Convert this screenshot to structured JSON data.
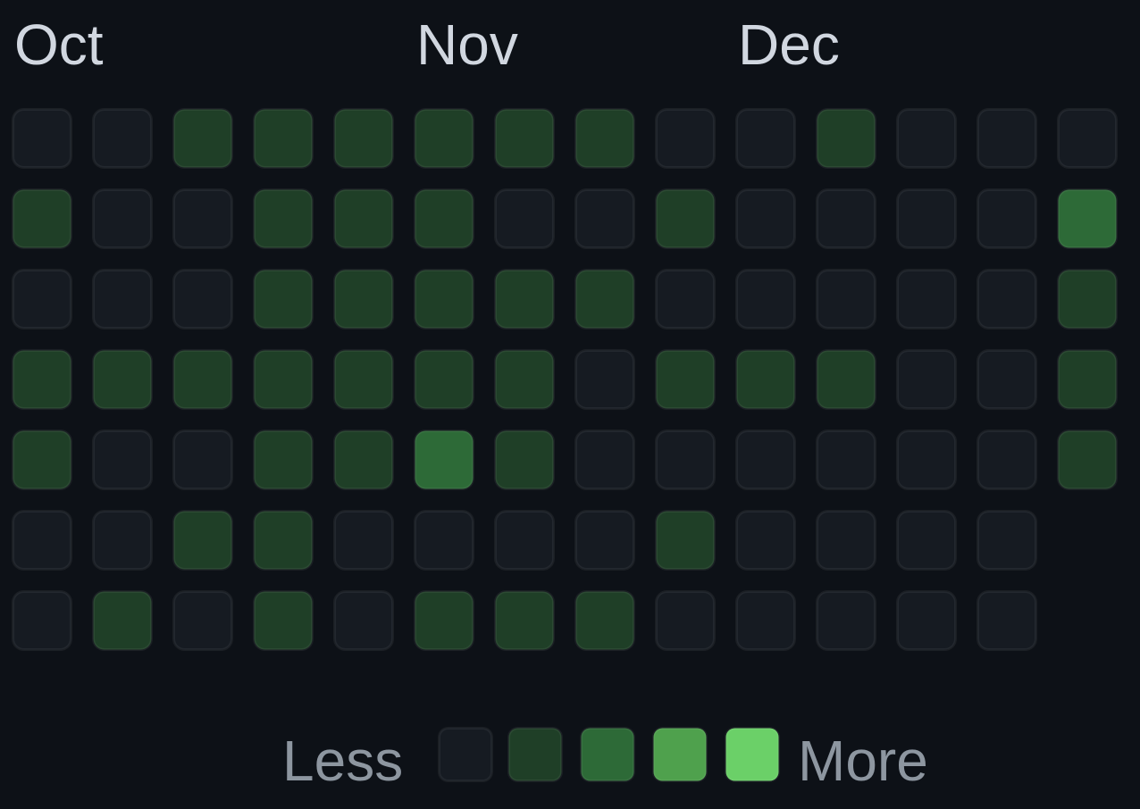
{
  "calendar": {
    "months": [
      "Oct",
      "Nov",
      "Dec"
    ],
    "weeks": [
      [
        0,
        1,
        0,
        1,
        1,
        0,
        0
      ],
      [
        0,
        0,
        0,
        1,
        0,
        0,
        1
      ],
      [
        1,
        0,
        0,
        1,
        0,
        1,
        0
      ],
      [
        1,
        1,
        1,
        1,
        1,
        1,
        1
      ],
      [
        1,
        1,
        1,
        1,
        1,
        0,
        0
      ],
      [
        1,
        1,
        1,
        1,
        2,
        0,
        1
      ],
      [
        1,
        0,
        1,
        1,
        1,
        0,
        1
      ],
      [
        1,
        0,
        1,
        0,
        0,
        0,
        1
      ],
      [
        0,
        1,
        0,
        1,
        0,
        1,
        0
      ],
      [
        0,
        0,
        0,
        1,
        0,
        0,
        0
      ],
      [
        1,
        0,
        0,
        1,
        0,
        0,
        0
      ],
      [
        0,
        0,
        0,
        0,
        0,
        0,
        0
      ],
      [
        0,
        0,
        0,
        0,
        0,
        0,
        0
      ],
      [
        0,
        2,
        1,
        1,
        1
      ]
    ],
    "legend": {
      "less": "Less",
      "more": "More",
      "levels": [
        0,
        1,
        2,
        3,
        4
      ],
      "colors": [
        "#161b22",
        "#1f3f27",
        "#2d6a37",
        "#4fa14d",
        "#6bd068"
      ]
    }
  }
}
